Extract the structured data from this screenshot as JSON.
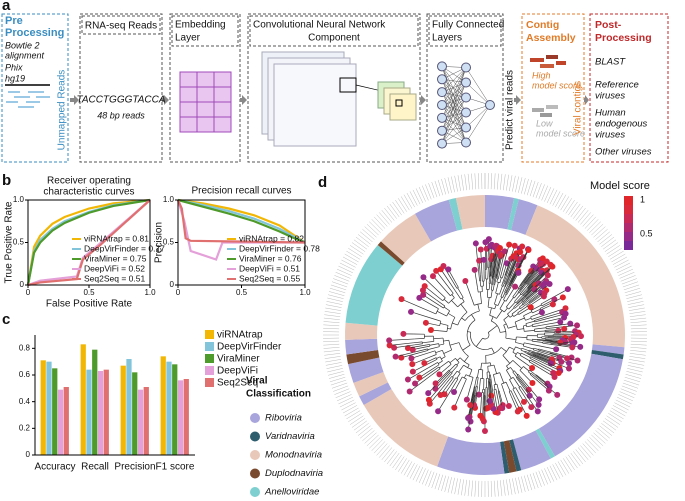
{
  "panel_labels": [
    "a",
    "b",
    "c",
    "d"
  ],
  "panel_a": {
    "pre_title": [
      "Pre",
      "Processing"
    ],
    "pre_items": [
      "Bowtie 2",
      "alignment",
      "Phix",
      "hg19"
    ],
    "pre_side": "Unmapped Reads",
    "reads_title": "RNA-seq Reads",
    "reads_seq": "TACCTGGGTACCA",
    "reads_len": "48 bp reads",
    "embed_title": [
      "Embedding",
      "Layer"
    ],
    "cnn_title": [
      "Convolutional Neural Network",
      "Component"
    ],
    "fc_title": [
      "Fully Connected",
      "Layers"
    ],
    "fc_side": "Predict viral reads",
    "contig_title": [
      "Contig",
      "Assembly"
    ],
    "contig_high": [
      "High",
      "model score"
    ],
    "contig_low": [
      "Low",
      "model score"
    ],
    "contig_side": "Viral contigs",
    "post_title": [
      "Post-",
      "Processing"
    ],
    "post_items": [
      "BLAST",
      "Reference",
      "viruses",
      "Human",
      "endogenous",
      "viruses",
      "Other viruses"
    ]
  },
  "chart_data": [
    {
      "type": "line",
      "title": [
        "Receiver operating",
        "characteristic curves"
      ],
      "xlabel": "False Positive Rate",
      "ylabel": "True Positive Rate",
      "xlim": [
        0,
        1
      ],
      "ylim": [
        0,
        1
      ],
      "xticks": [
        0,
        0.5,
        {
          "value": 1,
          "label": "1.0"
        }
      ],
      "yticks": [
        0,
        0.5,
        {
          "value": 1,
          "label": "1.0"
        }
      ],
      "legend": "lower right",
      "series": [
        {
          "name": "viRNAtrap = 0.81",
          "color": "#f2b705",
          "x": [
            0,
            0.05,
            0.1,
            0.2,
            0.3,
            0.5,
            0.7,
            1
          ],
          "values": [
            0,
            0.45,
            0.58,
            0.72,
            0.8,
            0.9,
            0.96,
            1
          ]
        },
        {
          "name": "DeepVirFinder = 0.77",
          "color": "#82c4d9",
          "x": [
            0,
            0.05,
            0.1,
            0.2,
            0.3,
            0.5,
            0.7,
            1
          ],
          "values": [
            0,
            0.4,
            0.53,
            0.66,
            0.75,
            0.86,
            0.94,
            1
          ]
        },
        {
          "name": "ViraMiner = 0.75",
          "color": "#4e9a2a",
          "x": [
            0,
            0.05,
            0.1,
            0.2,
            0.3,
            0.5,
            0.7,
            1
          ],
          "values": [
            0,
            0.38,
            0.5,
            0.64,
            0.73,
            0.85,
            0.93,
            1
          ]
        },
        {
          "name": "DeepViFi = 0.52",
          "color": "#e4a0d8",
          "x": [
            0,
            0.1,
            0.4,
            0.45,
            0.6,
            0.8,
            1
          ],
          "values": [
            0,
            0.05,
            0.1,
            0.32,
            0.5,
            0.75,
            1
          ]
        },
        {
          "name": "Seq2Seq = 0.51",
          "color": "#e07070",
          "x": [
            0,
            0.1,
            0.4,
            0.45,
            0.6,
            0.8,
            1
          ],
          "values": [
            0,
            0.03,
            0.07,
            0.3,
            0.48,
            0.74,
            1
          ]
        }
      ]
    },
    {
      "type": "line",
      "title": "Precision recall curves",
      "ylabel": "Precision",
      "xlim": [
        0,
        1
      ],
      "ylim": [
        0,
        1
      ],
      "xticks": [
        0,
        0.5,
        {
          "value": 1,
          "label": "1.0"
        }
      ],
      "yticks": [
        0,
        0.5,
        {
          "value": 1,
          "label": "1.0"
        }
      ],
      "legend": "lower right",
      "series": [
        {
          "name": "viRNAtrap = 0.82",
          "color": "#f2b705",
          "x": [
            0,
            0.2,
            0.4,
            0.6,
            0.8,
            0.9,
            1
          ],
          "values": [
            1,
            0.96,
            0.9,
            0.82,
            0.7,
            0.6,
            0.5
          ]
        },
        {
          "name": "DeepVirFinder = 0.78",
          "color": "#82c4d9",
          "x": [
            0,
            0.2,
            0.4,
            0.6,
            0.8,
            0.9,
            1
          ],
          "values": [
            1,
            0.94,
            0.87,
            0.78,
            0.66,
            0.58,
            0.5
          ]
        },
        {
          "name": "ViraMiner = 0.76",
          "color": "#4e9a2a",
          "x": [
            0,
            0.2,
            0.4,
            0.6,
            0.8,
            0.9,
            1
          ],
          "values": [
            1,
            0.92,
            0.84,
            0.75,
            0.63,
            0.56,
            0.5
          ]
        },
        {
          "name": "DeepViFi = 0.51",
          "color": "#e4a0d8",
          "x": [
            0,
            0.05,
            0.1,
            0.3,
            0.35,
            1
          ],
          "values": [
            1,
            0.75,
            0.4,
            0.3,
            0.5,
            0.5
          ]
        },
        {
          "name": "Seq2Seq = 0.55",
          "color": "#e07070",
          "x": [
            0,
            0.03,
            0.06,
            0.1,
            1
          ],
          "values": [
            1,
            0.9,
            0.55,
            0.52,
            0.5
          ]
        }
      ]
    },
    {
      "type": "bar",
      "categories": [
        "Accuracy",
        "Recall",
        "Precision",
        "F1 score"
      ],
      "ylim": [
        0,
        0.9
      ],
      "yticks": [
        0,
        0.2,
        0.4,
        0.6,
        0.8
      ],
      "legend": "right",
      "series": [
        {
          "name": "viRNAtrap",
          "color": "#f2b705",
          "values": [
            0.71,
            0.83,
            0.67,
            0.74
          ]
        },
        {
          "name": "DeepVirFinder",
          "color": "#82c4d9",
          "values": [
            0.7,
            0.64,
            0.72,
            0.7
          ]
        },
        {
          "name": "ViraMiner",
          "color": "#4e9a2a",
          "values": [
            0.65,
            0.79,
            0.62,
            0.68
          ]
        },
        {
          "name": "DeepViFi",
          "color": "#e4a0d8",
          "values": [
            0.49,
            0.63,
            0.49,
            0.56
          ]
        },
        {
          "name": "Seq2Seq",
          "color": "#e07070",
          "values": [
            0.51,
            0.64,
            0.51,
            0.57
          ]
        }
      ]
    }
  ],
  "panel_d": {
    "score_title": "Model score",
    "score_ticks": [
      "1",
      "0.5"
    ],
    "class_title": [
      "Viral",
      "Classification"
    ],
    "classes": [
      "Riboviria",
      "Varidnaviria",
      "Monodnaviria",
      "Duplodnaviria",
      "Anelloviridae"
    ]
  }
}
